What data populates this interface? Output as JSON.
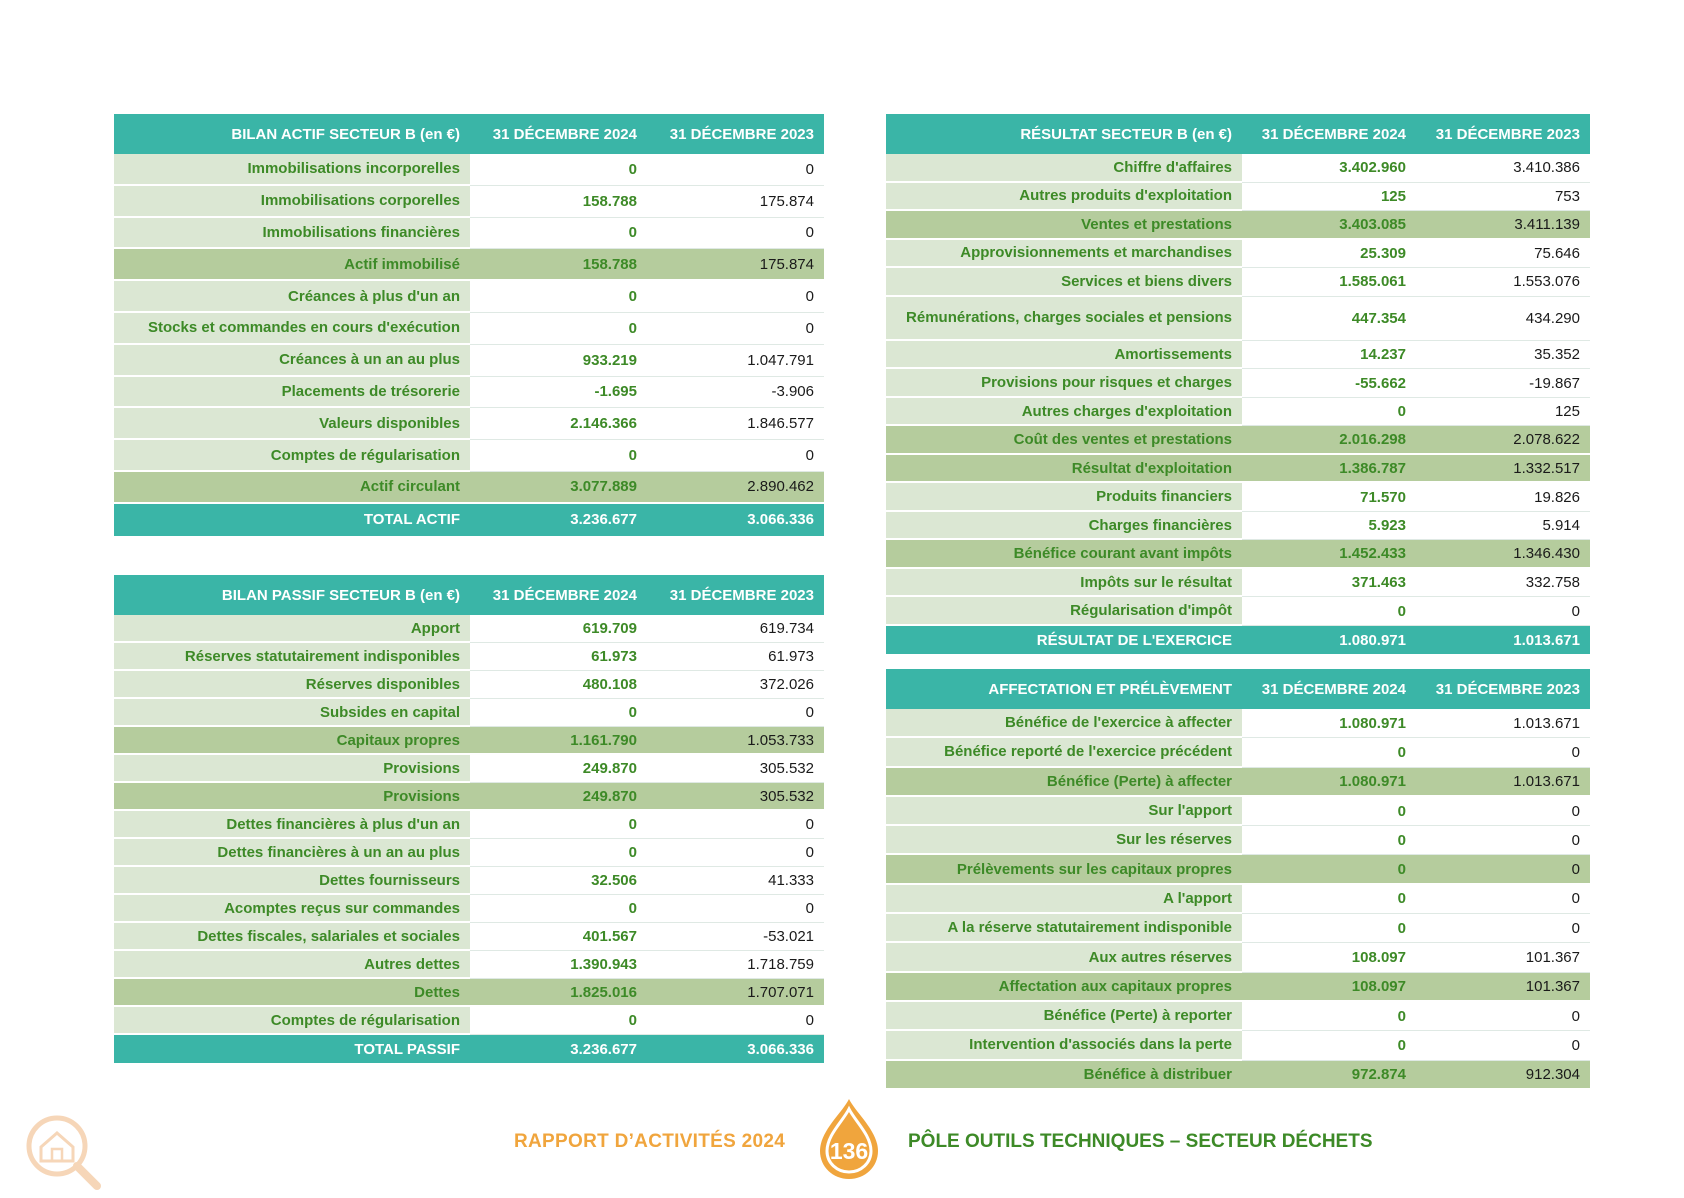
{
  "actif": {
    "headers": [
      "BILAN ACTIF SECTEUR B (en €)",
      "31 DÉCEMBRE 2024",
      "31 DÉCEMBRE 2023"
    ],
    "rows": [
      {
        "label": "Immobilisations incorporelles",
        "v2024": "0",
        "v2023": "0",
        "type": "row"
      },
      {
        "label": "Immobilisations corporelles",
        "v2024": "158.788",
        "v2023": "175.874",
        "type": "row"
      },
      {
        "label": "Immobilisations financières",
        "v2024": "0",
        "v2023": "0",
        "type": "row"
      },
      {
        "label": "Actif immobilisé",
        "v2024": "158.788",
        "v2023": "175.874",
        "type": "sub"
      },
      {
        "label": "Créances à plus d'un an",
        "v2024": "0",
        "v2023": "0",
        "type": "row"
      },
      {
        "label": "Stocks et commandes en cours d'exécution",
        "v2024": "0",
        "v2023": "0",
        "type": "row"
      },
      {
        "label": "Créances à un an au plus",
        "v2024": "933.219",
        "v2023": "1.047.791",
        "type": "row"
      },
      {
        "label": "Placements de trésorerie",
        "v2024": "-1.695",
        "v2023": "-3.906",
        "type": "row"
      },
      {
        "label": "Valeurs disponibles",
        "v2024": "2.146.366",
        "v2023": "1.846.577",
        "type": "row"
      },
      {
        "label": "Comptes de régularisation",
        "v2024": "0",
        "v2023": "0",
        "type": "row"
      },
      {
        "label": "Actif circulant",
        "v2024": "3.077.889",
        "v2023": "2.890.462",
        "type": "sub"
      },
      {
        "label": "TOTAL ACTIF",
        "v2024": "3.236.677",
        "v2023": "3.066.336",
        "type": "tot"
      }
    ]
  },
  "passif": {
    "headers": [
      "BILAN PASSIF SECTEUR B (en €)",
      "31 DÉCEMBRE 2024",
      "31 DÉCEMBRE 2023"
    ],
    "rows": [
      {
        "label": "Apport",
        "v2024": "619.709",
        "v2023": "619.734",
        "type": "row"
      },
      {
        "label": "Réserves statutairement indisponibles",
        "v2024": "61.973",
        "v2023": "61.973",
        "type": "row"
      },
      {
        "label": "Réserves disponibles",
        "v2024": "480.108",
        "v2023": "372.026",
        "type": "row"
      },
      {
        "label": "Subsides en capital",
        "v2024": "0",
        "v2023": "0",
        "type": "row"
      },
      {
        "label": "Capitaux propres",
        "v2024": "1.161.790",
        "v2023": "1.053.733",
        "type": "sub"
      },
      {
        "label": "Provisions",
        "v2024": "249.870",
        "v2023": "305.532",
        "type": "row"
      },
      {
        "label": "Provisions",
        "v2024": "249.870",
        "v2023": "305.532",
        "type": "sub"
      },
      {
        "label": "Dettes financières à plus d'un an",
        "v2024": "0",
        "v2023": "0",
        "type": "row"
      },
      {
        "label": "Dettes financières à un an au plus",
        "v2024": "0",
        "v2023": "0",
        "type": "row"
      },
      {
        "label": "Dettes fournisseurs",
        "v2024": "32.506",
        "v2023": "41.333",
        "type": "row"
      },
      {
        "label": "Acomptes reçus sur commandes",
        "v2024": "0",
        "v2023": "0",
        "type": "row"
      },
      {
        "label": "Dettes fiscales, salariales et sociales",
        "v2024": "401.567",
        "v2023": "-53.021",
        "type": "row"
      },
      {
        "label": "Autres dettes",
        "v2024": "1.390.943",
        "v2023": "1.718.759",
        "type": "row"
      },
      {
        "label": "Dettes",
        "v2024": "1.825.016",
        "v2023": "1.707.071",
        "type": "sub"
      },
      {
        "label": "Comptes de régularisation",
        "v2024": "0",
        "v2023": "0",
        "type": "row"
      },
      {
        "label": "TOTAL PASSIF",
        "v2024": "3.236.677",
        "v2023": "3.066.336",
        "type": "tot"
      }
    ]
  },
  "resultat": {
    "headers": [
      "RÉSULTAT SECTEUR B (en €)",
      "31 DÉCEMBRE 2024",
      "31 DÉCEMBRE 2023"
    ],
    "rows": [
      {
        "label": "Chiffre d'affaires",
        "v2024": "3.402.960",
        "v2023": "3.410.386",
        "type": "row"
      },
      {
        "label": "Autres produits d'exploitation",
        "v2024": "125",
        "v2023": "753",
        "type": "row"
      },
      {
        "label": "Ventes et prestations",
        "v2024": "3.403.085",
        "v2023": "3.411.139",
        "type": "sub"
      },
      {
        "label": "Approvisionnements et marchandises",
        "v2024": "25.309",
        "v2023": "75.646",
        "type": "row"
      },
      {
        "label": "Services et biens divers",
        "v2024": "1.585.061",
        "v2023": "1.553.076",
        "type": "row"
      },
      {
        "label": "Rémunérations, charges sociales et pensions",
        "v2024": "447.354",
        "v2023": "434.290",
        "type": "row"
      },
      {
        "label": "Amortissements",
        "v2024": "14.237",
        "v2023": "35.352",
        "type": "row"
      },
      {
        "label": "Provisions pour risques et charges",
        "v2024": "-55.662",
        "v2023": "-19.867",
        "type": "row"
      },
      {
        "label": "Autres charges d'exploitation",
        "v2024": "0",
        "v2023": "125",
        "type": "row"
      },
      {
        "label": "Coût des ventes et prestations",
        "v2024": "2.016.298",
        "v2023": "2.078.622",
        "type": "sub"
      },
      {
        "label": "Résultat d'exploitation",
        "v2024": "1.386.787",
        "v2023": "1.332.517",
        "type": "sub"
      },
      {
        "label": "Produits financiers",
        "v2024": "71.570",
        "v2023": "19.826",
        "type": "row"
      },
      {
        "label": "Charges financières",
        "v2024": "5.923",
        "v2023": "5.914",
        "type": "row"
      },
      {
        "label": "Bénéfice courant avant impôts",
        "v2024": "1.452.433",
        "v2023": "1.346.430",
        "type": "sub"
      },
      {
        "label": "Impôts sur le résultat",
        "v2024": "371.463",
        "v2023": "332.758",
        "type": "row"
      },
      {
        "label": "Régularisation d'impôt",
        "v2024": "0",
        "v2023": "0",
        "type": "row"
      },
      {
        "label": "RÉSULTAT DE L'EXERCICE",
        "v2024": "1.080.971",
        "v2023": "1.013.671",
        "type": "tot"
      }
    ]
  },
  "affectation": {
    "headers": [
      "AFFECTATION ET PRÉLÈVEMENT",
      "31 DÉCEMBRE 2024",
      "31 DÉCEMBRE 2023"
    ],
    "rows": [
      {
        "label": "Bénéfice de l'exercice à affecter",
        "v2024": "1.080.971",
        "v2023": "1.013.671",
        "type": "row"
      },
      {
        "label": "Bénéfice reporté de l'exercice précédent",
        "v2024": "0",
        "v2023": "0",
        "type": "row"
      },
      {
        "label": "Bénéfice (Perte) à affecter",
        "v2024": "1.080.971",
        "v2023": "1.013.671",
        "type": "sub"
      },
      {
        "label": "Sur l'apport",
        "v2024": "0",
        "v2023": "0",
        "type": "row"
      },
      {
        "label": "Sur les réserves",
        "v2024": "0",
        "v2023": "0",
        "type": "row"
      },
      {
        "label": "Prélèvements sur les capitaux propres",
        "v2024": "0",
        "v2023": "0",
        "type": "sub"
      },
      {
        "label": "A l'apport",
        "v2024": "0",
        "v2023": "0",
        "type": "row"
      },
      {
        "label": "A la réserve statutairement indisponible",
        "v2024": "0",
        "v2023": "0",
        "type": "row"
      },
      {
        "label": "Aux autres réserves",
        "v2024": "108.097",
        "v2023": "101.367",
        "type": "row"
      },
      {
        "label": "Affectation aux capitaux propres",
        "v2024": "108.097",
        "v2023": "101.367",
        "type": "sub"
      },
      {
        "label": "Bénéfice (Perte) à reporter",
        "v2024": "0",
        "v2023": "0",
        "type": "row"
      },
      {
        "label": "Intervention d'associés dans la perte",
        "v2024": "0",
        "v2023": "0",
        "type": "row"
      },
      {
        "label": "Bénéfice à distribuer",
        "v2024": "972.874",
        "v2023": "912.304",
        "type": "sub"
      }
    ]
  },
  "footer": {
    "left_text": "RAPPORT D’ACTIVITÉS 20",
    "left_year_end": "24",
    "page_number": "136",
    "right_text": "PÔLE OUTILS TECHNIQUES – SECTEUR DÉCHETS"
  },
  "colors": {
    "teal": "#3ab5a7",
    "light_green": "#dbe7d3",
    "mid_green": "#b5cc9d",
    "text_green": "#3d8a27",
    "orange": "#f0a53d"
  },
  "icons": {
    "logo": "house-magnifier-icon",
    "page_badge": "drop-badge-icon"
  }
}
